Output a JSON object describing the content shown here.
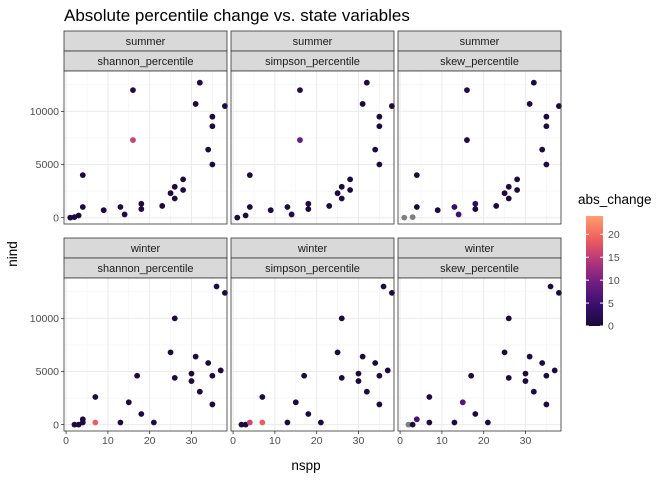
{
  "chart_data": {
    "type": "scatter",
    "title": "Absolute percentile change vs. state variables",
    "xlabel": "nspp",
    "ylabel": "nind",
    "xlim": [
      -0.5,
      38.5
    ],
    "ylim": [
      -600,
      13800
    ],
    "x_ticks": [
      0,
      10,
      20,
      30
    ],
    "x_tick_labels": [
      "0",
      "10",
      "20",
      "30"
    ],
    "y_ticks": [
      0,
      5000,
      10000
    ],
    "y_tick_labels": [
      "0",
      "5000",
      "10000"
    ],
    "grid": true,
    "facet_rows": [
      {
        "label": "summer"
      },
      {
        "label": "winter"
      }
    ],
    "facet_cols": [
      {
        "label": "shannon_percentile"
      },
      {
        "label": "simpson_percentile"
      },
      {
        "label": "skew_percentile"
      }
    ],
    "legend": {
      "title": "abs_change",
      "position": "right",
      "min": 0,
      "max": 24,
      "ticks": [
        0,
        5,
        10,
        15,
        20
      ],
      "tick_labels": [
        "0",
        "5",
        "10",
        "15",
        "20"
      ],
      "colors": [
        "#1a0a3a",
        "#3b0f70",
        "#721f81",
        "#b73779",
        "#f1605d",
        "#fe9f6d"
      ],
      "na_color": "#7f7f7f"
    },
    "panels": [
      {
        "row": 0,
        "col": 0,
        "points": [
          {
            "x": 1,
            "y": 0,
            "c": 0.3
          },
          {
            "x": 2,
            "y": 50,
            "c": 0.3
          },
          {
            "x": 3,
            "y": 200,
            "c": 0.3
          },
          {
            "x": 4,
            "y": 1000,
            "c": 0.5
          },
          {
            "x": 4,
            "y": 4000,
            "c": 0.5
          },
          {
            "x": 9,
            "y": 700,
            "c": 0.5
          },
          {
            "x": 13,
            "y": 1000,
            "c": 0.8
          },
          {
            "x": 14,
            "y": 300,
            "c": 1.0
          },
          {
            "x": 16,
            "y": 7300,
            "c": 16
          },
          {
            "x": 16,
            "y": 12000,
            "c": 1.5
          },
          {
            "x": 18,
            "y": 1300,
            "c": 0.8
          },
          {
            "x": 18,
            "y": 800,
            "c": 0.5
          },
          {
            "x": 23,
            "y": 1100,
            "c": 0.5
          },
          {
            "x": 25,
            "y": 2300,
            "c": 0.5
          },
          {
            "x": 26,
            "y": 1800,
            "c": 0.5
          },
          {
            "x": 26,
            "y": 2900,
            "c": 0.5
          },
          {
            "x": 28,
            "y": 3600,
            "c": 0.5
          },
          {
            "x": 28,
            "y": 2600,
            "c": 0.5
          },
          {
            "x": 31,
            "y": 10700,
            "c": 0.5
          },
          {
            "x": 32,
            "y": 12700,
            "c": 1.0
          },
          {
            "x": 34,
            "y": 6400,
            "c": 0.5
          },
          {
            "x": 35,
            "y": 8600,
            "c": 0.5
          },
          {
            "x": 35,
            "y": 5000,
            "c": 0.5
          },
          {
            "x": 35,
            "y": 9500,
            "c": 0.5
          },
          {
            "x": 38,
            "y": 10500,
            "c": 0.5
          }
        ]
      },
      {
        "row": 0,
        "col": 1,
        "points": [
          {
            "x": 1,
            "y": 0,
            "c": 0.3
          },
          {
            "x": 3,
            "y": 200,
            "c": 0.3
          },
          {
            "x": 4,
            "y": 4000,
            "c": 0.5
          },
          {
            "x": 4,
            "y": 1000,
            "c": 0.5
          },
          {
            "x": 9,
            "y": 700,
            "c": 0.5
          },
          {
            "x": 13,
            "y": 1000,
            "c": 0.8
          },
          {
            "x": 14,
            "y": 300,
            "c": 1.0
          },
          {
            "x": 16,
            "y": 7300,
            "c": 9
          },
          {
            "x": 16,
            "y": 12000,
            "c": 1.5
          },
          {
            "x": 18,
            "y": 1300,
            "c": 0.8
          },
          {
            "x": 18,
            "y": 800,
            "c": 0.5
          },
          {
            "x": 23,
            "y": 1100,
            "c": 0.5
          },
          {
            "x": 25,
            "y": 2300,
            "c": 0.5
          },
          {
            "x": 26,
            "y": 1800,
            "c": 0.5
          },
          {
            "x": 26,
            "y": 2900,
            "c": 0.5
          },
          {
            "x": 28,
            "y": 3600,
            "c": 0.5
          },
          {
            "x": 28,
            "y": 2600,
            "c": 0.5
          },
          {
            "x": 31,
            "y": 10700,
            "c": 0.5
          },
          {
            "x": 32,
            "y": 12700,
            "c": 1.0
          },
          {
            "x": 34,
            "y": 6400,
            "c": 0.5
          },
          {
            "x": 35,
            "y": 8600,
            "c": 0.5
          },
          {
            "x": 35,
            "y": 5000,
            "c": 0.5
          },
          {
            "x": 35,
            "y": 9500,
            "c": 0.5
          },
          {
            "x": 38,
            "y": 10500,
            "c": 0.5
          }
        ]
      },
      {
        "row": 0,
        "col": 2,
        "points": [
          {
            "x": 1,
            "y": 0,
            "c": null
          },
          {
            "x": 3,
            "y": 50,
            "c": null
          },
          {
            "x": 4,
            "y": 4000,
            "c": 0.5
          },
          {
            "x": 4,
            "y": 1000,
            "c": 0.5
          },
          {
            "x": 9,
            "y": 700,
            "c": 0.5
          },
          {
            "x": 13,
            "y": 1000,
            "c": 4
          },
          {
            "x": 14,
            "y": 300,
            "c": 5
          },
          {
            "x": 16,
            "y": 7300,
            "c": 0.8
          },
          {
            "x": 16,
            "y": 12000,
            "c": 1.5
          },
          {
            "x": 18,
            "y": 1300,
            "c": 3
          },
          {
            "x": 18,
            "y": 800,
            "c": 0.5
          },
          {
            "x": 23,
            "y": 1100,
            "c": 0.5
          },
          {
            "x": 25,
            "y": 2300,
            "c": 0.5
          },
          {
            "x": 26,
            "y": 1800,
            "c": 0.5
          },
          {
            "x": 26,
            "y": 2900,
            "c": 0.5
          },
          {
            "x": 28,
            "y": 3600,
            "c": 0.5
          },
          {
            "x": 28,
            "y": 2600,
            "c": 0.5
          },
          {
            "x": 31,
            "y": 10700,
            "c": 0.5
          },
          {
            "x": 32,
            "y": 12700,
            "c": 1.0
          },
          {
            "x": 34,
            "y": 6400,
            "c": 0.5
          },
          {
            "x": 35,
            "y": 8600,
            "c": 0.5
          },
          {
            "x": 35,
            "y": 5000,
            "c": 0.5
          },
          {
            "x": 35,
            "y": 9500,
            "c": 0.5
          },
          {
            "x": 38,
            "y": 10500,
            "c": 0.5
          }
        ]
      },
      {
        "row": 1,
        "col": 0,
        "points": [
          {
            "x": 2,
            "y": 0,
            "c": 0.5
          },
          {
            "x": 3,
            "y": 0,
            "c": 0.5
          },
          {
            "x": 4,
            "y": 200,
            "c": 0.5
          },
          {
            "x": 4,
            "y": 500,
            "c": 0.5
          },
          {
            "x": 7,
            "y": 200,
            "c": 19
          },
          {
            "x": 7,
            "y": 2600,
            "c": 0.5
          },
          {
            "x": 13,
            "y": 200,
            "c": 0.5
          },
          {
            "x": 15,
            "y": 2100,
            "c": 0.5
          },
          {
            "x": 17,
            "y": 4600,
            "c": 0.5
          },
          {
            "x": 18,
            "y": 1000,
            "c": 0.5
          },
          {
            "x": 21,
            "y": 200,
            "c": 0.5
          },
          {
            "x": 25,
            "y": 6800,
            "c": 0.5
          },
          {
            "x": 26,
            "y": 10000,
            "c": 0.5
          },
          {
            "x": 26,
            "y": 4400,
            "c": 0.5
          },
          {
            "x": 30,
            "y": 4800,
            "c": 0.5
          },
          {
            "x": 30,
            "y": 4100,
            "c": 0.5
          },
          {
            "x": 31,
            "y": 6400,
            "c": 0.5
          },
          {
            "x": 32,
            "y": 3100,
            "c": 0.5
          },
          {
            "x": 34,
            "y": 5800,
            "c": 0.5
          },
          {
            "x": 35,
            "y": 4600,
            "c": 0.5
          },
          {
            "x": 35,
            "y": 1900,
            "c": 0.5
          },
          {
            "x": 36,
            "y": 13000,
            "c": 0.5
          },
          {
            "x": 37,
            "y": 5100,
            "c": 0.5
          },
          {
            "x": 38,
            "y": 12400,
            "c": 0.5
          }
        ]
      },
      {
        "row": 1,
        "col": 1,
        "points": [
          {
            "x": 2,
            "y": 0,
            "c": 0.5
          },
          {
            "x": 3,
            "y": 0,
            "c": 0.5
          },
          {
            "x": 4,
            "y": 200,
            "c": 16
          },
          {
            "x": 7,
            "y": 200,
            "c": 19
          },
          {
            "x": 7,
            "y": 2600,
            "c": 0.5
          },
          {
            "x": 13,
            "y": 200,
            "c": 0.5
          },
          {
            "x": 15,
            "y": 2100,
            "c": 0.5
          },
          {
            "x": 17,
            "y": 4600,
            "c": 0.5
          },
          {
            "x": 18,
            "y": 1000,
            "c": 0.5
          },
          {
            "x": 21,
            "y": 200,
            "c": 0.5
          },
          {
            "x": 25,
            "y": 6800,
            "c": 0.5
          },
          {
            "x": 26,
            "y": 10000,
            "c": 0.5
          },
          {
            "x": 26,
            "y": 4400,
            "c": 0.5
          },
          {
            "x": 30,
            "y": 4800,
            "c": 0.5
          },
          {
            "x": 30,
            "y": 4100,
            "c": 0.5
          },
          {
            "x": 31,
            "y": 6400,
            "c": 0.5
          },
          {
            "x": 32,
            "y": 3100,
            "c": 0.5
          },
          {
            "x": 34,
            "y": 5800,
            "c": 0.5
          },
          {
            "x": 35,
            "y": 4600,
            "c": 0.5
          },
          {
            "x": 35,
            "y": 1900,
            "c": 0.5
          },
          {
            "x": 36,
            "y": 13000,
            "c": 0.5
          },
          {
            "x": 37,
            "y": 5100,
            "c": 0.5
          },
          {
            "x": 38,
            "y": 12400,
            "c": 0.5
          }
        ]
      },
      {
        "row": 1,
        "col": 2,
        "points": [
          {
            "x": 2,
            "y": 0,
            "c": null
          },
          {
            "x": 3,
            "y": 0,
            "c": 0.5
          },
          {
            "x": 4,
            "y": 500,
            "c": 6
          },
          {
            "x": 7,
            "y": 200,
            "c": 0.5
          },
          {
            "x": 7,
            "y": 2600,
            "c": 0.5
          },
          {
            "x": 13,
            "y": 200,
            "c": 0.5
          },
          {
            "x": 15,
            "y": 2100,
            "c": 7
          },
          {
            "x": 17,
            "y": 4600,
            "c": 0.5
          },
          {
            "x": 18,
            "y": 1000,
            "c": 0.5
          },
          {
            "x": 21,
            "y": 200,
            "c": 0.5
          },
          {
            "x": 25,
            "y": 6800,
            "c": 0.5
          },
          {
            "x": 26,
            "y": 10000,
            "c": 0.5
          },
          {
            "x": 26,
            "y": 4400,
            "c": 0.5
          },
          {
            "x": 30,
            "y": 4800,
            "c": 0.5
          },
          {
            "x": 30,
            "y": 4100,
            "c": 0.5
          },
          {
            "x": 31,
            "y": 6400,
            "c": 0.5
          },
          {
            "x": 32,
            "y": 3100,
            "c": 0.5
          },
          {
            "x": 34,
            "y": 5800,
            "c": 0.5
          },
          {
            "x": 35,
            "y": 4600,
            "c": 0.5
          },
          {
            "x": 35,
            "y": 1900,
            "c": 0.5
          },
          {
            "x": 36,
            "y": 13000,
            "c": 0.5
          },
          {
            "x": 37,
            "y": 5100,
            "c": 0.5
          },
          {
            "x": 38,
            "y": 12400,
            "c": 0.5
          }
        ]
      }
    ]
  }
}
